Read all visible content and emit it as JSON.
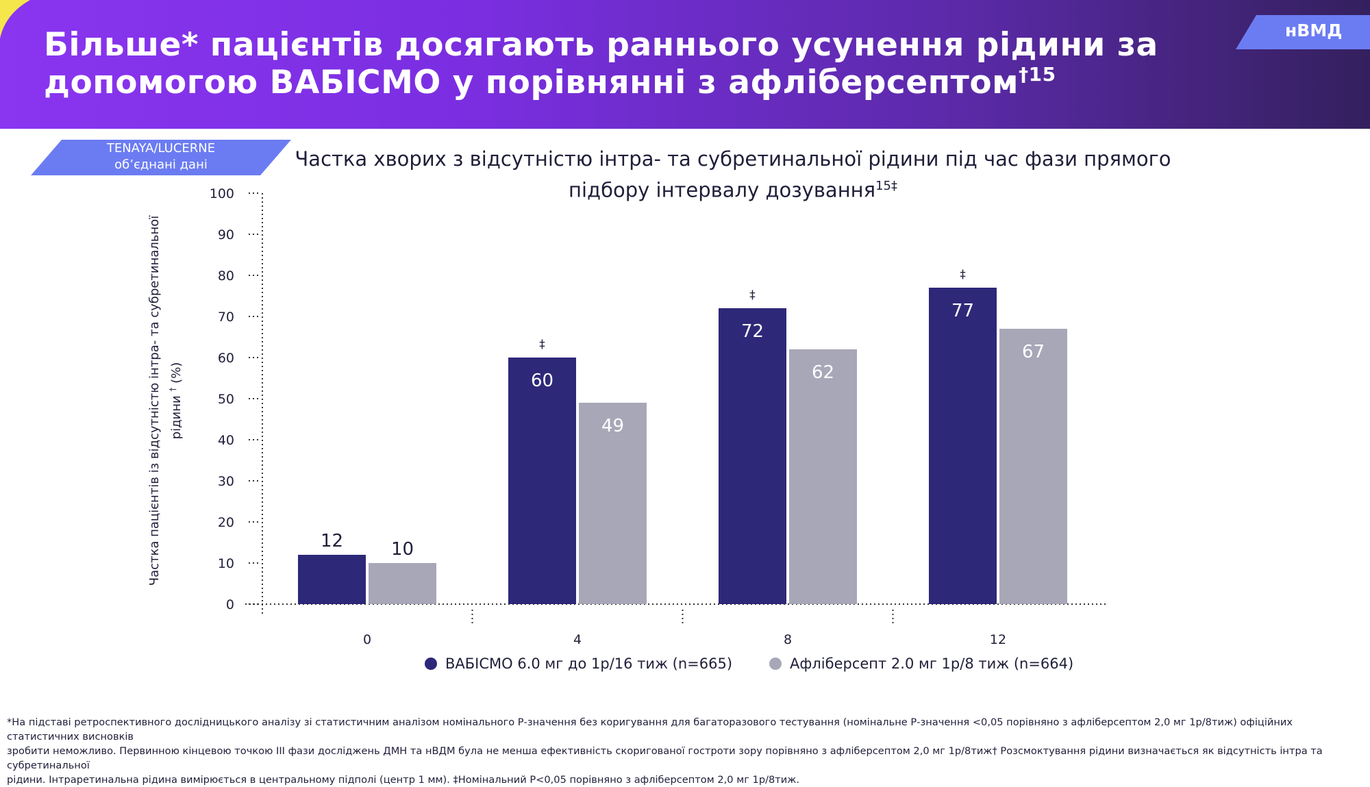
{
  "header": {
    "title_line1": "Більше* пацієнтів досягають раннього усунення рідини за",
    "title_line2": "допомогою ВАБІСМО у порівнянні з афліберсептом",
    "title_sup": "†15",
    "region_tag": "нВМД",
    "colors": {
      "gradient_start": "#8a35f0",
      "gradient_end": "#34205e",
      "accent_yellow": "#f4e64b"
    }
  },
  "study_tag": {
    "line1": "TENAYA/LUCERNE",
    "line2": "об’єднані дані",
    "color": "#6b7cf2"
  },
  "chart_data": {
    "type": "bar",
    "title": "Частка хворих з відсутністю інтра- та субретинальної рідини під час фази прямого підбору інтервалу дозування",
    "title_line1": "Частка хворих з відсутністю інтра- та субретинальної рідини під час фази прямого",
    "title_line2": "підбору інтервалу дозування",
    "title_sup": "15‡",
    "ylabel_line1": "Частка пацієнтів із відсутністю інтра- та субретинальної",
    "ylabel_line2": "рідини",
    "ylabel_sup": "†",
    "ylabel_line2_suffix": "(%)",
    "ylim": [
      0,
      100
    ],
    "yticks": [
      0,
      10,
      20,
      30,
      40,
      50,
      60,
      70,
      80,
      90,
      100
    ],
    "categories": [
      "0",
      "4",
      "8",
      "12"
    ],
    "series": [
      {
        "name": "ВАБІСМО 6.0 мг до 1р/16 тиж (n=665)",
        "values": [
          12,
          60,
          72,
          77
        ],
        "labels": [
          "12",
          "60",
          "72",
          "77"
        ],
        "color": "#2e2879"
      },
      {
        "name": "Афліберсепт 2.0 мг 1р/8 тиж (n=664)",
        "values": [
          10,
          49,
          62,
          67
        ],
        "labels": [
          "10",
          "49",
          "62",
          "67"
        ],
        "color": "#a8a7b8"
      }
    ],
    "significance": [
      "",
      "‡",
      "‡",
      "‡"
    ],
    "grid": false,
    "legend_position": "bottom"
  },
  "footnote": {
    "line1": "*На підставі ретроспективного дослідницького аналізу зі статистичним аналізом номінального Р-значення без коригування для багаторазового тестування (номінальне Р-значення <0,05 порівняно з афліберсептом 2,0 мг 1р/8тиж) офіційних статистичних висновків",
    "line2": "зробити неможливо. Первинною кінцевою точкою ІІІ фази досліджень ДМН та нВДМ була не менша ефективність скоригованої гостроти зору порівняно з афліберсептом 2,0 мг 1р/8тиж† Розсмоктування рідини визначається як відсутність інтра та субретинальної",
    "line3": "рідини. Інтраретинальна рідина вимірюється в центральному підполі (центр 1 мм). ‡Номінальний P<0,05 порівняно з афліберсептом 2,0 мг 1р/8тиж."
  }
}
